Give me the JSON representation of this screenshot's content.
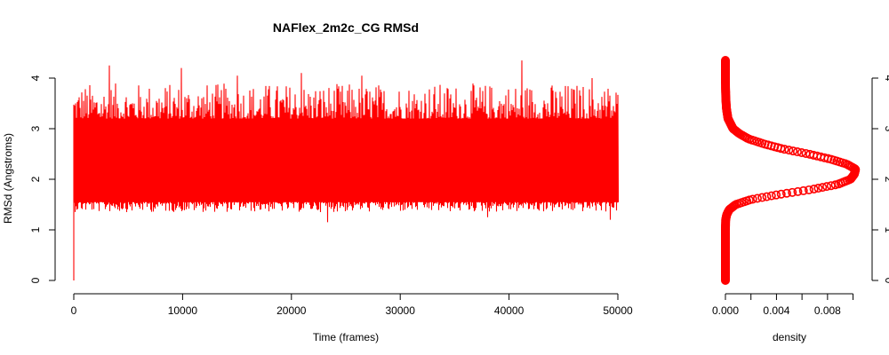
{
  "chart_data": [
    {
      "type": "line",
      "title": "NAFlex_2m2c_CG RMSd",
      "xlabel": "Time (frames)",
      "ylabel": "RMSd (Angstroms)",
      "xlim": [
        0,
        50000
      ],
      "ylim": [
        0,
        4
      ],
      "xticks": [
        0,
        10000,
        20000,
        30000,
        40000,
        50000
      ],
      "yticks": [
        0,
        1,
        2,
        3,
        4
      ],
      "xtick_labels": [
        "0",
        "10000",
        "20000",
        "30000",
        "40000",
        "50000"
      ],
      "ytick_labels": [
        "0",
        "1",
        "2",
        "3",
        "4"
      ],
      "grid": false,
      "series": [
        {
          "color": "#ff0000",
          "x_range": [
            0,
            50000
          ],
          "start_value": 0.0,
          "band_core": [
            1.6,
            3.05
          ],
          "typical_max": 3.9,
          "typical_min": 1.35,
          "peak_max": [
            {
              "x": 3300,
              "y": 4.25
            },
            {
              "x": 9900,
              "y": 4.2
            },
            {
              "x": 15000,
              "y": 4.05
            },
            {
              "x": 20900,
              "y": 4.1
            },
            {
              "x": 26500,
              "y": 4.05
            },
            {
              "x": 41200,
              "y": 4.35
            },
            {
              "x": 47600,
              "y": 4.0
            }
          ],
          "peak_min": [
            {
              "x": 23300,
              "y": 1.15
            },
            {
              "x": 38000,
              "y": 1.25
            },
            {
              "x": 49300,
              "y": 1.2
            }
          ]
        }
      ]
    },
    {
      "type": "line",
      "orientation": "vertical",
      "title": "",
      "xlabel": "density",
      "ylabel": "",
      "xlim": [
        0,
        0.0101
      ],
      "ylim": [
        0,
        4
      ],
      "xticks": [
        0,
        0.002,
        0.004,
        0.006,
        0.008,
        0.01
      ],
      "xtick_labels": [
        "0.000",
        "",
        "0.004",
        "",
        "0.008",
        ""
      ],
      "yticks": [
        0,
        1,
        2,
        3,
        4
      ],
      "ytick_labels": [
        "0",
        "1",
        "2",
        "3",
        "4"
      ],
      "yaxis_side": "right",
      "marker": "open-circle",
      "series": [
        {
          "color": "#ff0000",
          "y": [
            0.0,
            0.2,
            0.4,
            0.6,
            0.8,
            1.0,
            1.2,
            1.3,
            1.4,
            1.5,
            1.6,
            1.7,
            1.8,
            1.9,
            2.0,
            2.1,
            2.2,
            2.3,
            2.4,
            2.5,
            2.6,
            2.7,
            2.8,
            2.9,
            3.0,
            3.2,
            3.4,
            3.6,
            3.8,
            4.0,
            4.2,
            4.35
          ],
          "density": [
            0.0,
            0.0,
            0.0,
            0.0,
            0.0,
            0.0,
            2e-05,
            0.0001,
            0.0003,
            0.0008,
            0.002,
            0.0042,
            0.0068,
            0.0088,
            0.0098,
            0.0101,
            0.0102,
            0.0095,
            0.0082,
            0.0065,
            0.0045,
            0.003,
            0.0018,
            0.0011,
            0.0006,
            0.0002,
            8e-05,
            3e-05,
            1e-05,
            0.0,
            0.0,
            0.0
          ]
        }
      ]
    }
  ]
}
